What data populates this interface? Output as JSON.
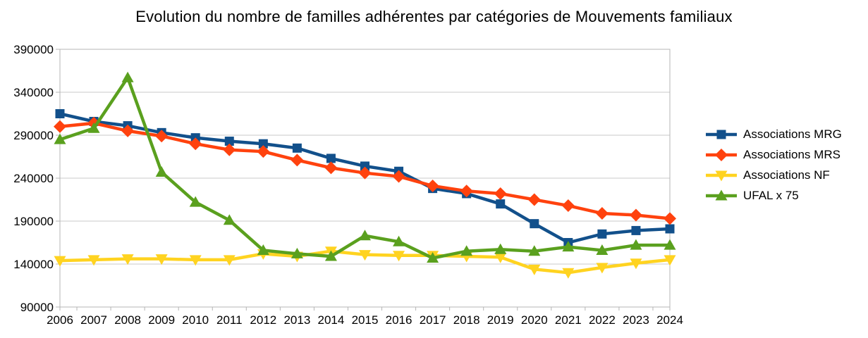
{
  "chart_data": {
    "type": "line",
    "title": "Evolution du nombre de familles adhérentes par catégories de Mouvements familiaux",
    "xlabel": "",
    "ylabel": "",
    "x": [
      2006,
      2007,
      2008,
      2009,
      2010,
      2011,
      2012,
      2013,
      2014,
      2015,
      2016,
      2017,
      2018,
      2019,
      2020,
      2021,
      2022,
      2023,
      2024
    ],
    "ylim": [
      90000,
      390000
    ],
    "ytick_step": 50000,
    "grid": "horizontal",
    "legend_position": "right",
    "series": [
      {
        "name": "Associations MRG",
        "marker": "square",
        "color": "#12508B",
        "values": [
          315000,
          306000,
          301000,
          293000,
          287000,
          283000,
          280000,
          275000,
          263000,
          254000,
          248000,
          228000,
          222000,
          210000,
          187000,
          165000,
          175000,
          179000,
          181000
        ]
      },
      {
        "name": "Associations MRS",
        "marker": "diamond",
        "color": "#FF420E",
        "values": [
          300000,
          304000,
          295000,
          289000,
          280000,
          273000,
          271000,
          261000,
          252000,
          246000,
          242000,
          231000,
          225000,
          222000,
          215000,
          208000,
          199000,
          197000,
          193000
        ]
      },
      {
        "name": "Associations NF",
        "marker": "triangle-down",
        "color": "#FFD320",
        "values": [
          144000,
          145000,
          146000,
          146000,
          145000,
          145000,
          152000,
          149000,
          155000,
          151000,
          150000,
          150000,
          149000,
          148000,
          134000,
          130000,
          136000,
          141000,
          145000
        ]
      },
      {
        "name": "UFAL x 75",
        "marker": "triangle-up",
        "color": "#5AA01E",
        "values": [
          285000,
          298000,
          357000,
          247000,
          212000,
          191000,
          156000,
          152000,
          149000,
          173000,
          166000,
          147000,
          155000,
          157000,
          155000,
          160000,
          156000,
          162000,
          162000
        ]
      }
    ]
  },
  "styles": {
    "background": "#FFFFFF",
    "grid_color": "#C9C9C9",
    "axis_color": "#B5B5B5",
    "text_color": "#000000"
  }
}
